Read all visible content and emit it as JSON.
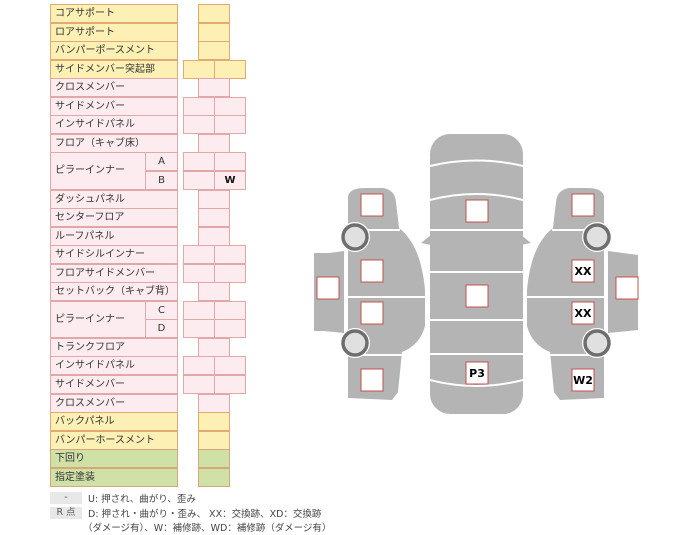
{
  "rows": [
    {
      "label": "コアサポート",
      "tone": "y",
      "cells": "single"
    },
    {
      "label": "ロアサポート",
      "tone": "y",
      "cells": "single"
    },
    {
      "label": "バンパーポースメント",
      "tone": "y",
      "cells": "single"
    },
    {
      "label": "サイドメンバー突起部",
      "tone": "y",
      "cells": "double"
    },
    {
      "label": "クロスメンバー",
      "tone": "p",
      "cells": "single"
    },
    {
      "label": "サイドメンバー",
      "tone": "p",
      "cells": "double"
    },
    {
      "label": "インサイドパネル",
      "tone": "p",
      "cells": "double"
    },
    {
      "label": "フロア（キャブ床）",
      "tone": "p",
      "cells": "single"
    },
    {
      "label": "ピラーインナー",
      "sub": "A",
      "tone": "p",
      "cells": "double"
    },
    {
      "label": "",
      "sub": "B",
      "tone": "p",
      "cells": "double",
      "right": "W"
    },
    {
      "label": "ダッシュパネル",
      "tone": "p",
      "cells": "single"
    },
    {
      "label": "センターフロア",
      "tone": "p",
      "cells": "single"
    },
    {
      "label": "ルーフパネル",
      "tone": "p",
      "cells": "single"
    },
    {
      "label": "サイドシルインナー",
      "tone": "p",
      "cells": "double"
    },
    {
      "label": "フロアサイドメンバー",
      "tone": "p",
      "cells": "double"
    },
    {
      "label": "セットバック（キャブ背）",
      "tone": "p",
      "cells": "single"
    },
    {
      "label": "ピラーインナー",
      "sub": "C",
      "tone": "p",
      "cells": "double"
    },
    {
      "label": "",
      "sub": "D",
      "tone": "p",
      "cells": "double"
    },
    {
      "label": "トランクフロア",
      "tone": "p",
      "cells": "single"
    },
    {
      "label": "インサイドパネル",
      "tone": "p",
      "cells": "double"
    },
    {
      "label": "サイドメンバー",
      "tone": "p",
      "cells": "double"
    },
    {
      "label": "クロスメンバー",
      "tone": "p",
      "cells": "single"
    },
    {
      "label": "バックパネル",
      "tone": "y",
      "cells": "single"
    },
    {
      "label": "バンパーホースメント",
      "tone": "y",
      "cells": "single"
    },
    {
      "label": "下回り",
      "tone": "g",
      "cells": "single"
    },
    {
      "label": "指定塗装",
      "tone": "g",
      "cells": "single"
    }
  ],
  "legend": {
    "key1": "-",
    "text1": "U: 押され、曲がり、歪み",
    "key2": "R 点",
    "text2": "D: 押され・曲がり・歪み、 XX：交換跡、XD：交換跡",
    "text3": "（ダメージ有）、W：補修跡、WD：補修跡（ダメージ有）"
  },
  "diagram": {
    "center": [
      "",
      "",
      "P3"
    ],
    "left": [
      "",
      "",
      "",
      "",
      ""
    ],
    "right": [
      "",
      "XX",
      "XX",
      "W2",
      ""
    ]
  },
  "colors": {
    "body": "#b4b4b4",
    "box_border": "#c0504d",
    "tire": "#6e6e6e"
  }
}
